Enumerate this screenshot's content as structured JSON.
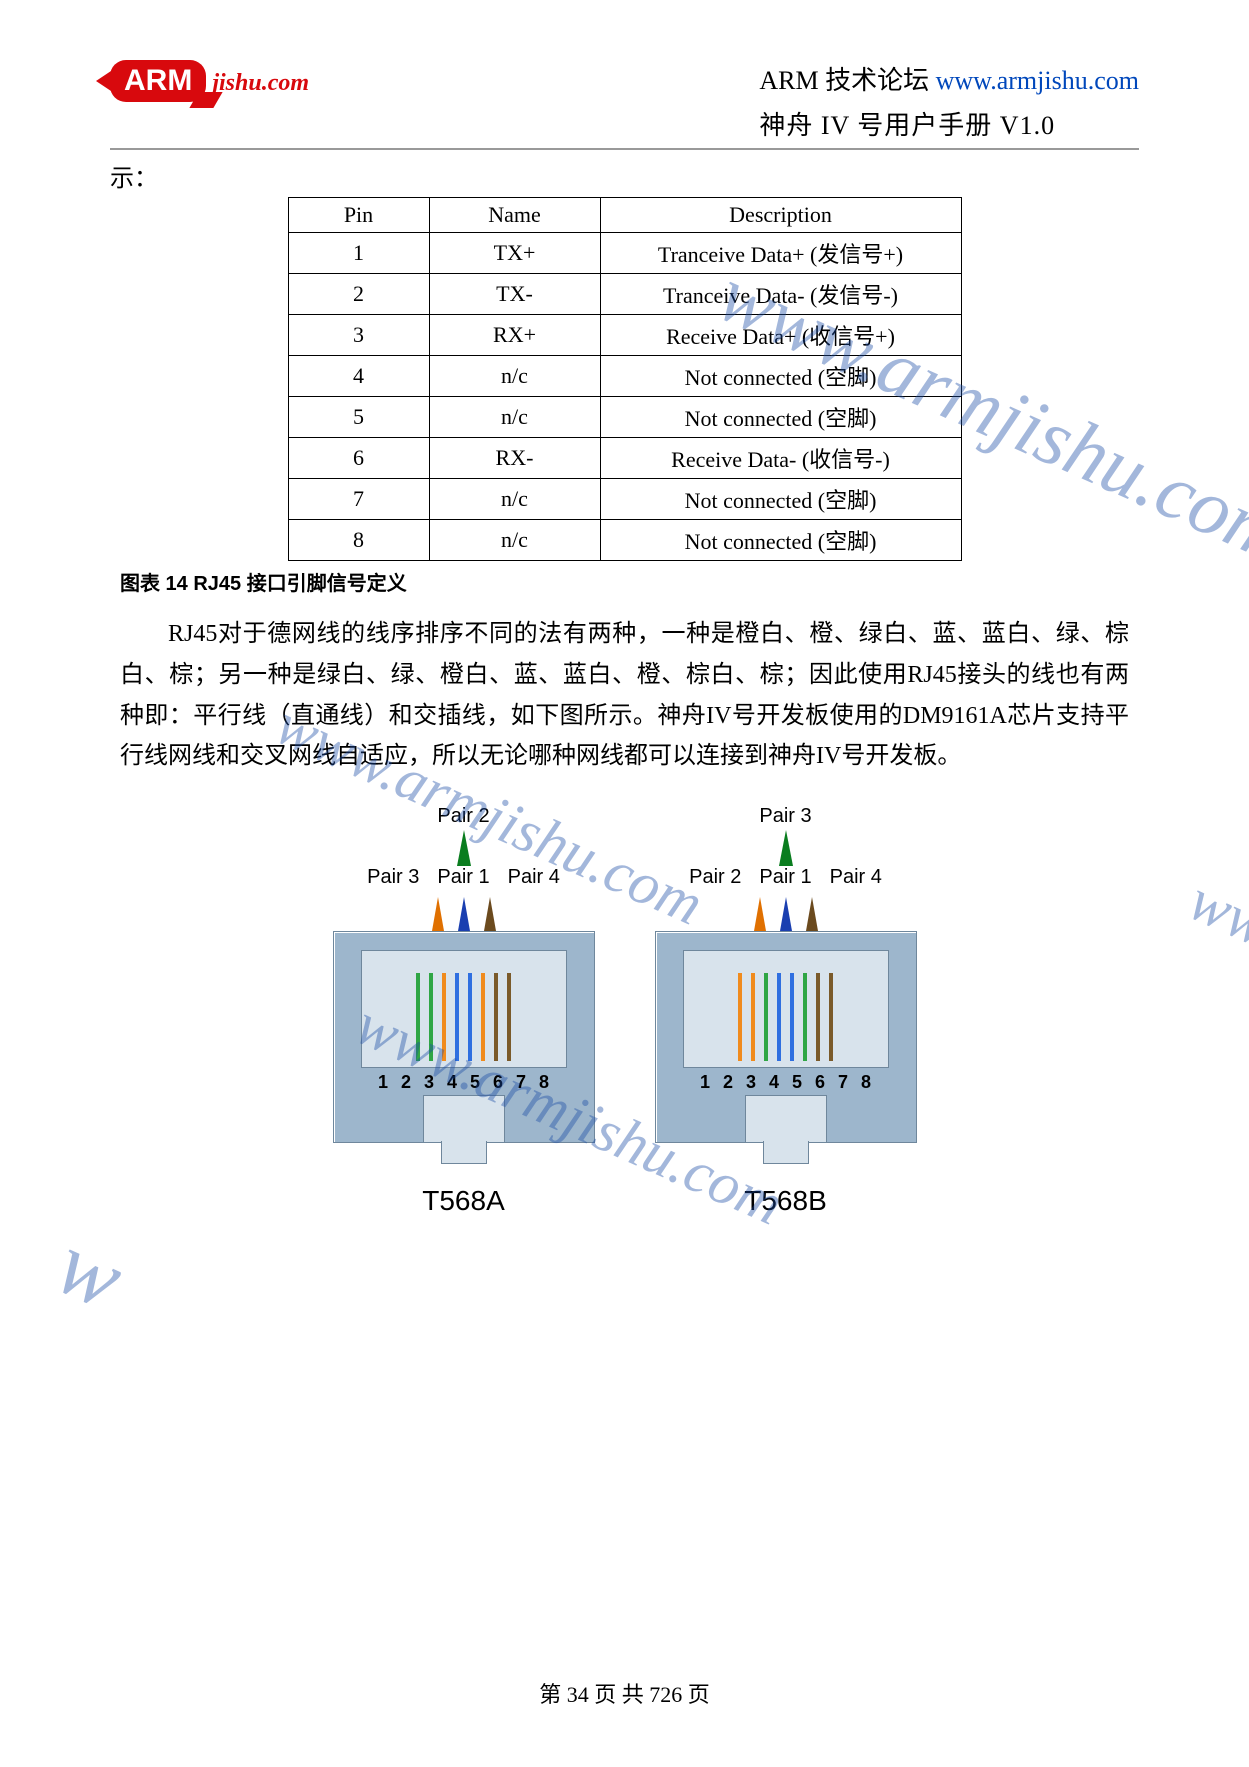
{
  "header": {
    "logo_main": "ARM",
    "logo_tail": "jishu.com",
    "forum_label": "ARM 技术论坛 ",
    "forum_url": "www.armjishu.com",
    "subtitle": "神舟 IV 号用户手册  V1.0"
  },
  "lead_text": "示：",
  "pin_table": {
    "columns": [
      "Pin",
      "Name",
      "Description"
    ],
    "rows": [
      [
        "1",
        "TX+",
        "Tranceive Data+ (发信号+)"
      ],
      [
        "2",
        "TX-",
        "Tranceive Data- (发信号-)"
      ],
      [
        "3",
        "RX+",
        "Receive Data+ (收信号+)"
      ],
      [
        "4",
        "n/c",
        "Not connected (空脚)"
      ],
      [
        "5",
        "n/c",
        "Not connected (空脚)"
      ],
      [
        "6",
        "RX-",
        "Receive Data- (收信号-)"
      ],
      [
        "7",
        "n/c",
        "Not connected (空脚)"
      ],
      [
        "8",
        "n/c",
        "Not connected (空脚)"
      ]
    ],
    "col_widths": [
      "120px",
      "150px",
      "340px"
    ]
  },
  "table_caption": "图表  14 RJ45 接口引脚信号定义",
  "paragraph": "RJ45对于德网线的线序排序不同的法有两种，一种是橙白、橙、绿白、蓝、蓝白、绿、棕白、棕；另一种是绿白、绿、橙白、蓝、蓝白、橙、棕白、棕；因此使用RJ45接头的线也有两种即：平行线（直通线）和交插线，如下图所示。神舟IV号开发板使用的DM9161A芯片支持平行线网线和交叉网线自适应，所以无论哪种网线都可以连接到神舟IV号开发板。",
  "pairs_top": "Pair 2",
  "pairs_top_b": "Pair 3",
  "pairs_row_a": [
    "Pair 3",
    "Pair 1",
    "Pair 4"
  ],
  "pairs_row_b": [
    "Pair 2",
    "Pair 1",
    "Pair 4"
  ],
  "arrow_colors_a": [
    "#e07000",
    "#1a3fb0",
    "#6b4a1e"
  ],
  "arrow_colors_b": [
    "#e07000",
    "#1a3fb0",
    "#6b4a1e"
  ],
  "arrow_top_color": "#0a7d1f",
  "t568a_wires": [
    "#2fa645",
    "#2fa645",
    "#f08b1d",
    "#2f6fe0",
    "#2f6fe0",
    "#f08b1d",
    "#7a5a2a",
    "#7a5a2a"
  ],
  "t568b_wires": [
    "#f08b1d",
    "#f08b1d",
    "#2fa645",
    "#2f6fe0",
    "#2f6fe0",
    "#2fa645",
    "#7a5a2a",
    "#7a5a2a"
  ],
  "slot_numbers": [
    "1",
    "2",
    "3",
    "4",
    "5",
    "6",
    "7",
    "8"
  ],
  "label_a": "T568A",
  "label_b": "T568B",
  "watermark_text": "www.armjishu.com",
  "footer": "第 34 页  共 726 页"
}
